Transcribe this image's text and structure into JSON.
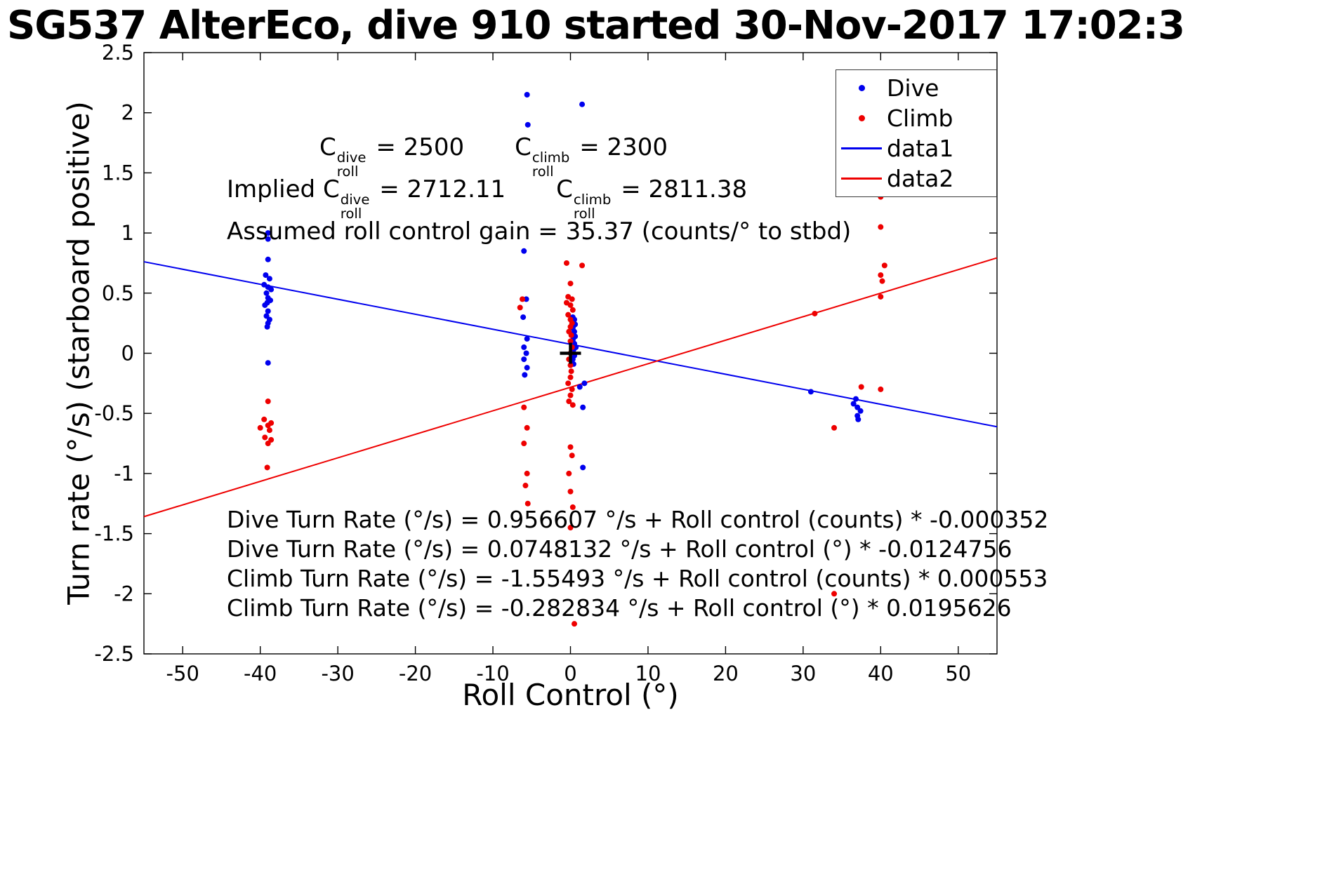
{
  "title": "SG537 AlterEco, dive 910 started 30-Nov-2017 17:02:3",
  "annotations": {
    "croll": {
      "dive": {
        "base": "C",
        "sub": "roll",
        "sup": "dive",
        "value": " = 2500"
      },
      "climb": {
        "base": "C",
        "sub": "roll",
        "sup": "climb",
        "value": " = 2300"
      }
    },
    "implied": {
      "prefix": "Implied ",
      "dive": {
        "base": "C",
        "sub": "roll",
        "sup": "dive",
        "value": " = 2712.11"
      },
      "climb": {
        "base": "C",
        "sub": "roll",
        "sup": "climb",
        "value": " = 2811.38"
      }
    },
    "gain_line": "Assumed roll control gain = 35.37 (counts/° to stbd)",
    "fit_lines": [
      "Dive Turn Rate (°/s) = 0.956607 °/s + Roll control (counts) * -0.000352",
      "Dive Turn Rate (°/s) = 0.0748132 °/s + Roll control (°) * -0.0124756",
      "Climb Turn Rate (°/s) = -1.55493 °/s + Roll control (counts) * 0.000553",
      "Climb Turn Rate (°/s) = -0.282834 °/s + Roll control (°) * 0.0195626"
    ]
  },
  "chart_data": {
    "type": "scatter",
    "title": "SG537 AlterEco, dive 910 started 30-Nov-2017 17:02:3",
    "xlabel": "Roll Control (°)",
    "ylabel": "Turn rate (°/s) (starboard positive)",
    "xlim": [
      -55,
      55
    ],
    "ylim": [
      -2.5,
      2.5
    ],
    "xticks": [
      -50,
      -40,
      -30,
      -20,
      -10,
      0,
      10,
      20,
      30,
      40,
      50
    ],
    "yticks": [
      -2.5,
      -2,
      -1.5,
      -1,
      -0.5,
      0,
      0.5,
      1,
      1.5,
      2,
      2.5
    ],
    "grid": false,
    "legend": {
      "position": "top-right",
      "entries": [
        {
          "label": "Dive",
          "marker": "dot",
          "color": "#0000ee"
        },
        {
          "label": "Climb",
          "marker": "dot",
          "color": "#ee0000"
        },
        {
          "label": "data1",
          "marker": "line",
          "color": "#0000ee"
        },
        {
          "label": "data2",
          "marker": "line",
          "color": "#ee0000"
        }
      ]
    },
    "series": [
      {
        "name": "Dive",
        "type": "scatter",
        "color": "#0000ee",
        "points": [
          [
            -39,
            1.0
          ],
          [
            -39,
            0.95
          ],
          [
            -39,
            0.78
          ],
          [
            -39.3,
            0.65
          ],
          [
            -38.8,
            0.62
          ],
          [
            -39.5,
            0.57
          ],
          [
            -39,
            0.55
          ],
          [
            -38.6,
            0.53
          ],
          [
            -39.2,
            0.5
          ],
          [
            -39,
            0.46
          ],
          [
            -38.7,
            0.44
          ],
          [
            -39.1,
            0.42
          ],
          [
            -39.4,
            0.4
          ],
          [
            -39,
            0.35
          ],
          [
            -39.2,
            0.31
          ],
          [
            -38.8,
            0.28
          ],
          [
            -39,
            0.25
          ],
          [
            -39.1,
            0.22
          ],
          [
            -39,
            -0.08
          ],
          [
            -5.6,
            2.15
          ],
          [
            -5.5,
            1.9
          ],
          [
            -6.0,
            0.85
          ],
          [
            -5.7,
            0.45
          ],
          [
            -6.1,
            0.3
          ],
          [
            -5.6,
            0.12
          ],
          [
            -6.0,
            0.05
          ],
          [
            -5.7,
            0.0
          ],
          [
            -6.0,
            -0.05
          ],
          [
            -5.6,
            -0.12
          ],
          [
            -5.9,
            -0.18
          ],
          [
            0.3,
            0.3
          ],
          [
            0.5,
            0.28
          ],
          [
            0.3,
            0.26
          ],
          [
            0.4,
            0.23
          ],
          [
            0.3,
            0.21
          ],
          [
            0.5,
            0.18
          ],
          [
            0.3,
            0.16
          ],
          [
            0.4,
            0.13
          ],
          [
            0.3,
            0.11
          ],
          [
            0.5,
            0.08
          ],
          [
            0.3,
            0.06
          ],
          [
            0.4,
            0.03
          ],
          [
            0.3,
            0.01
          ],
          [
            0.5,
            -0.02
          ],
          [
            0.3,
            -0.05
          ],
          [
            0.4,
            -0.09
          ],
          [
            0.6,
            0.24
          ],
          [
            0.6,
            0.14
          ],
          [
            0.7,
            0.05
          ],
          [
            1.5,
            2.07
          ],
          [
            1.8,
            -0.25
          ],
          [
            1.2,
            -0.28
          ],
          [
            1.6,
            -0.45
          ],
          [
            1.6,
            -0.95
          ],
          [
            31,
            -0.32
          ],
          [
            36.8,
            -0.38
          ],
          [
            36.5,
            -0.42
          ],
          [
            37,
            -0.45
          ],
          [
            37.4,
            -0.48
          ],
          [
            37,
            -0.52
          ],
          [
            37.1,
            -0.55
          ]
        ]
      },
      {
        "name": "Climb",
        "type": "scatter",
        "color": "#ee0000",
        "points": [
          [
            -39,
            -0.4
          ],
          [
            -39.5,
            -0.55
          ],
          [
            -38.6,
            -0.58
          ],
          [
            -39,
            -0.6
          ],
          [
            -40,
            -0.62
          ],
          [
            -38.8,
            -0.64
          ],
          [
            -39.4,
            -0.7
          ],
          [
            -38.6,
            -0.72
          ],
          [
            -39,
            -0.75
          ],
          [
            -39.1,
            -0.95
          ],
          [
            -6.2,
            0.45
          ],
          [
            -6.5,
            0.38
          ],
          [
            -6.0,
            -0.45
          ],
          [
            -5.6,
            -0.62
          ],
          [
            -6.0,
            -0.75
          ],
          [
            -5.6,
            -1.0
          ],
          [
            -5.8,
            -1.1
          ],
          [
            -5.5,
            -1.25
          ],
          [
            -0.5,
            0.75
          ],
          [
            1.5,
            0.73
          ],
          [
            0.0,
            0.58
          ],
          [
            -0.3,
            0.47
          ],
          [
            0.2,
            0.45
          ],
          [
            -0.5,
            0.42
          ],
          [
            0.0,
            0.4
          ],
          [
            0.3,
            0.36
          ],
          [
            -0.3,
            0.32
          ],
          [
            0.0,
            0.28
          ],
          [
            0.2,
            0.25
          ],
          [
            0.0,
            0.22
          ],
          [
            -0.2,
            0.18
          ],
          [
            0.1,
            0.15
          ],
          [
            0.0,
            0.1
          ],
          [
            0.2,
            0.05
          ],
          [
            0.0,
            0.0
          ],
          [
            -0.2,
            -0.05
          ],
          [
            0.0,
            -0.1
          ],
          [
            0.1,
            -0.15
          ],
          [
            0.0,
            -0.2
          ],
          [
            -0.3,
            -0.25
          ],
          [
            0.2,
            -0.3
          ],
          [
            0.0,
            -0.35
          ],
          [
            -0.2,
            -0.4
          ],
          [
            0.3,
            -0.43
          ],
          [
            0.0,
            -0.78
          ],
          [
            0.2,
            -0.85
          ],
          [
            -0.2,
            -1.0
          ],
          [
            0.0,
            -1.15
          ],
          [
            0.3,
            -1.28
          ],
          [
            0.0,
            -1.45
          ],
          [
            0.5,
            -2.25
          ],
          [
            34,
            -2.0
          ],
          [
            31.5,
            0.33
          ],
          [
            40,
            1.3
          ],
          [
            40,
            1.05
          ],
          [
            40.5,
            0.73
          ],
          [
            40,
            0.65
          ],
          [
            40.2,
            0.6
          ],
          [
            40,
            0.47
          ],
          [
            34,
            -0.62
          ],
          [
            37.5,
            -0.28
          ],
          [
            40,
            -0.3
          ]
        ]
      },
      {
        "name": "data1",
        "type": "line",
        "color": "#0000ee",
        "fit": {
          "intercept": 0.0748132,
          "slope": -0.0124756
        },
        "x_range": [
          -55,
          55
        ]
      },
      {
        "name": "data2",
        "type": "line",
        "color": "#ee0000",
        "fit": {
          "intercept": -0.282834,
          "slope": 0.0195626
        },
        "x_range": [
          -55,
          55
        ]
      }
    ],
    "markers": [
      {
        "type": "plus",
        "x": 0,
        "y": 0,
        "color": "#000000"
      }
    ]
  }
}
